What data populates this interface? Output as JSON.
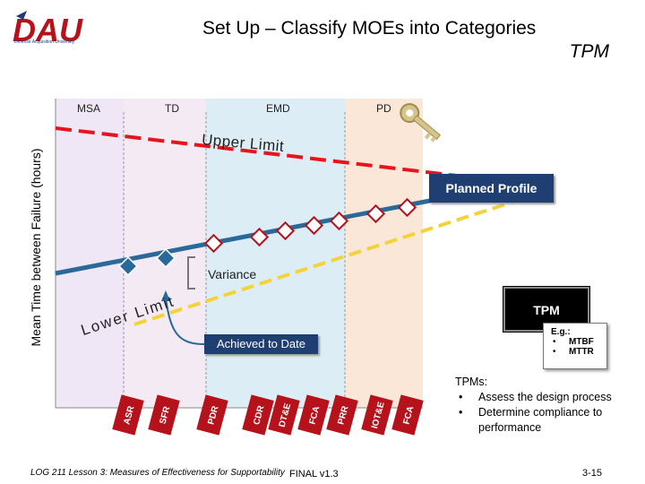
{
  "header": {
    "logo_text": "DAU",
    "logo_subtitle": "Defense Acquisition University",
    "title": "Set Up – Classify MOEs into Categories",
    "subtitle": "TPM"
  },
  "diagram": {
    "y_axis_label": "Mean Time between Failure (hours)",
    "phases": [
      "MSA",
      "TD",
      "EMD",
      "PD"
    ],
    "upper_limit_label": "Upper Limit",
    "lower_limit_label": "Lower Limit",
    "planned_profile_label": "Planned Profile",
    "variance_label": "Variance",
    "achieved_label": "Achieved to Date",
    "milestones": [
      "ASR",
      "SFR",
      "PDR",
      "CDR",
      "DT&E",
      "FCA",
      "PRR",
      "IOT&E",
      "FCA"
    ],
    "colors": {
      "planned_line": "#2a6a9a",
      "upper_limit": "#e8141c",
      "lower_limit": "#f2d43a",
      "callout_box": "#1f3f73",
      "milestone": "#b5121b",
      "phase_msa": "#efe7f6",
      "phase_td": "#f4eaf3",
      "phase_emd": "#dcedf5",
      "phase_pd": "#fae7d8"
    }
  },
  "tpm_box": {
    "label": "TPM",
    "eg_heading": "E.g.:",
    "eg_items": [
      "MTBF",
      "MTTR"
    ]
  },
  "tpms_note": {
    "heading": "TPMs:",
    "items": [
      "Assess the design process",
      "Determine compliance to performance"
    ]
  },
  "footer": {
    "course": "LOG 211 Lesson 3: Measures of Effectiveness for Supportability",
    "version": "FINAL v1.3",
    "page": "3-15"
  }
}
